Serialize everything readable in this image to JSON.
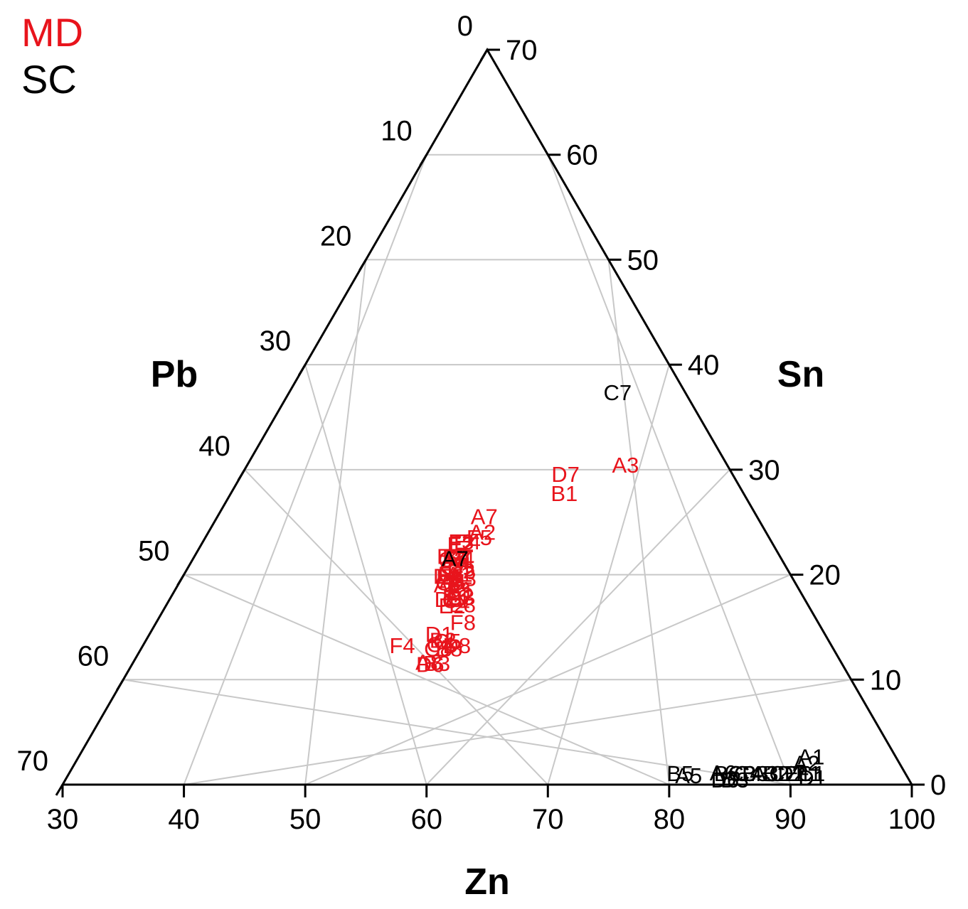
{
  "chart_data": {
    "type": "scatter",
    "subtype": "ternary",
    "axes": {
      "bottom": {
        "label": "Zn",
        "ticks": [
          "30",
          "40",
          "50",
          "60",
          "70",
          "80",
          "90",
          "100"
        ]
      },
      "left": {
        "label": "Pb",
        "ticks": [
          "0",
          "10",
          "20",
          "30",
          "40",
          "50",
          "60",
          "70"
        ]
      },
      "right": {
        "label": "Sn",
        "ticks": [
          "70",
          "60",
          "50",
          "40",
          "30",
          "20",
          "10",
          "0"
        ]
      }
    },
    "ranges": {
      "Zn": [
        30,
        100
      ],
      "Pb": [
        0,
        70
      ],
      "Sn": [
        0,
        70
      ]
    },
    "grid": true,
    "legend_position": "top-left",
    "series": [
      {
        "name": "MD",
        "color": "#e8141c",
        "points": [
          {
            "label": "A3",
            "zn": 61.2,
            "pb": 8.4,
            "sn": 30.4
          },
          {
            "label": "D7",
            "zn": 56.7,
            "pb": 13.8,
            "sn": 29.5
          },
          {
            "label": "B1",
            "zn": 57.5,
            "pb": 14.8,
            "sn": 27.7
          },
          {
            "label": "A7",
            "zn": 52.0,
            "pb": 22.5,
            "sn": 25.5
          },
          {
            "label": "A2",
            "zn": 52.6,
            "pb": 23.4,
            "sn": 24.0
          },
          {
            "label": "F5",
            "zn": 52.6,
            "pb": 23.9,
            "sn": 23.5
          },
          {
            "label": "E4",
            "zn": 51.8,
            "pb": 25.1,
            "sn": 23.1
          },
          {
            "label": "F3",
            "zn": 51.3,
            "pb": 25.6,
            "sn": 23.1
          },
          {
            "label": "F2",
            "zn": 51.4,
            "pb": 25.7,
            "sn": 22.9
          },
          {
            "label": "E2",
            "zn": 51.4,
            "pb": 25.8,
            "sn": 22.8
          },
          {
            "label": "B6",
            "zn": 51.6,
            "pb": 26.7,
            "sn": 21.7
          },
          {
            "label": "F7",
            "zn": 51.5,
            "pb": 26.8,
            "sn": 21.7
          },
          {
            "label": "A5",
            "zn": 51.7,
            "pb": 26.9,
            "sn": 21.4
          },
          {
            "label": "C2",
            "zn": 51.4,
            "pb": 27.2,
            "sn": 21.4
          },
          {
            "label": "B4",
            "zn": 52.1,
            "pb": 26.4,
            "sn": 21.5
          },
          {
            "label": "F1",
            "zn": 52.1,
            "pb": 26.5,
            "sn": 21.4
          },
          {
            "label": "B7",
            "zn": 51.1,
            "pb": 27.2,
            "sn": 21.7
          },
          {
            "label": "D5",
            "zn": 52.6,
            "pb": 26.9,
            "sn": 20.5
          },
          {
            "label": "D2",
            "zn": 52.7,
            "pb": 27.0,
            "sn": 20.3
          },
          {
            "label": "C7",
            "zn": 51.9,
            "pb": 27.4,
            "sn": 20.7
          },
          {
            "label": "A1",
            "zn": 52.7,
            "pb": 27.3,
            "sn": 20.0
          },
          {
            "label": "F6",
            "zn": 52.0,
            "pb": 28.0,
            "sn": 20.0
          },
          {
            "label": "D4",
            "zn": 51.8,
            "pb": 28.4,
            "sn": 19.8
          },
          {
            "label": "E3",
            "zn": 53.2,
            "pb": 27.2,
            "sn": 19.6
          },
          {
            "label": "E5",
            "zn": 52.0,
            "pb": 28.2,
            "sn": 19.8
          },
          {
            "label": "C6",
            "zn": 52.3,
            "pb": 28.5,
            "sn": 19.2
          },
          {
            "label": "A4",
            "zn": 52.5,
            "pb": 28.2,
            "sn": 19.3
          },
          {
            "label": "A6",
            "zn": 52.2,
            "pb": 28.8,
            "sn": 19.0
          },
          {
            "label": "B5",
            "zn": 53.5,
            "pb": 28.0,
            "sn": 18.5
          },
          {
            "label": "E1",
            "zn": 53.7,
            "pb": 28.1,
            "sn": 18.2
          },
          {
            "label": "C3",
            "zn": 53.9,
            "pb": 28.3,
            "sn": 17.8
          },
          {
            "label": "E6",
            "zn": 53.5,
            "pb": 28.7,
            "sn": 17.8
          },
          {
            "label": "D3",
            "zn": 53.0,
            "pb": 29.4,
            "sn": 17.6
          },
          {
            "label": "C1",
            "zn": 53.7,
            "pb": 28.8,
            "sn": 17.5
          },
          {
            "label": "E8",
            "zn": 54.4,
            "pb": 28.5,
            "sn": 17.1
          },
          {
            "label": "E2",
            "zn": 53.6,
            "pb": 29.4,
            "sn": 17.0
          },
          {
            "label": "F8",
            "zn": 55.3,
            "pb": 29.3,
            "sn": 15.4
          },
          {
            "label": "D1",
            "zn": 53.9,
            "pb": 31.8,
            "sn": 14.3
          },
          {
            "label": "B2",
            "zn": 54.5,
            "pb": 31.8,
            "sn": 13.7
          },
          {
            "label": "C5",
            "zn": 54.9,
            "pb": 31.5,
            "sn": 13.6
          },
          {
            "label": "D8",
            "zn": 55.9,
            "pb": 30.9,
            "sn": 13.2
          },
          {
            "label": "C4",
            "zn": 54.5,
            "pb": 32.2,
            "sn": 13.3
          },
          {
            "label": "B8",
            "zn": 55.4,
            "pb": 31.7,
            "sn": 12.9
          },
          {
            "label": "C8",
            "zn": 54.5,
            "pb": 32.6,
            "sn": 12.9
          },
          {
            "label": "F4",
            "zn": 51.4,
            "pb": 35.4,
            "sn": 13.2
          },
          {
            "label": "B3",
            "zn": 55.1,
            "pb": 33.4,
            "sn": 11.5
          },
          {
            "label": "A8",
            "zn": 54.4,
            "pb": 34.0,
            "sn": 11.6
          },
          {
            "label": "D6",
            "zn": 54.6,
            "pb": 34.0,
            "sn": 11.4
          }
        ]
      },
      {
        "name": "SC",
        "color": "#000000",
        "points": [
          {
            "label": "C7",
            "zn": 57.1,
            "pb": 5.6,
            "sn": 37.3
          },
          {
            "label": "A7",
            "zn": 51.6,
            "pb": 26.9,
            "sn": 21.5
          },
          {
            "label": "A1",
            "zn": 90.4,
            "pb": 7.0,
            "sn": 2.6
          },
          {
            "label": "A2",
            "zn": 90.3,
            "pb": 7.7,
            "sn": 2.0
          },
          {
            "label": "B5",
            "zn": 80.4,
            "pb": 18.6,
            "sn": 1.0
          },
          {
            "label": "A5",
            "zn": 81.2,
            "pb": 18.0,
            "sn": 0.8
          },
          {
            "label": "A6",
            "zn": 83.9,
            "pb": 15.0,
            "sn": 1.1
          },
          {
            "label": "B6",
            "zn": 84.3,
            "pb": 14.7,
            "sn": 1.0
          },
          {
            "label": "D6",
            "zn": 84.4,
            "pb": 15.2,
            "sn": 0.4
          },
          {
            "label": "D3",
            "zn": 85.2,
            "pb": 14.4,
            "sn": 0.4
          },
          {
            "label": "C3",
            "zn": 85.5,
            "pb": 13.5,
            "sn": 1.0
          },
          {
            "label": "C4",
            "zn": 86.0,
            "pb": 13.0,
            "sn": 1.0
          },
          {
            "label": "B3",
            "zn": 86.6,
            "pb": 12.4,
            "sn": 1.0
          },
          {
            "label": "A3",
            "zn": 87.4,
            "pb": 11.6,
            "sn": 1.0
          },
          {
            "label": "B2",
            "zn": 88.3,
            "pb": 10.7,
            "sn": 1.0
          },
          {
            "label": "C2",
            "zn": 88.9,
            "pb": 10.1,
            "sn": 1.0
          },
          {
            "label": "D2",
            "zn": 89.6,
            "pb": 9.4,
            "sn": 1.0
          },
          {
            "label": "E1",
            "zn": 90.1,
            "pb": 8.9,
            "sn": 1.0
          },
          {
            "label": "D1",
            "zn": 91.5,
            "pb": 7.9,
            "sn": 0.6
          },
          {
            "label": "F1",
            "zn": 91.0,
            "pb": 8.0,
            "sn": 1.0
          },
          {
            "label": "C1",
            "zn": 91.2,
            "pb": 7.8,
            "sn": 1.0
          }
        ]
      }
    ]
  }
}
